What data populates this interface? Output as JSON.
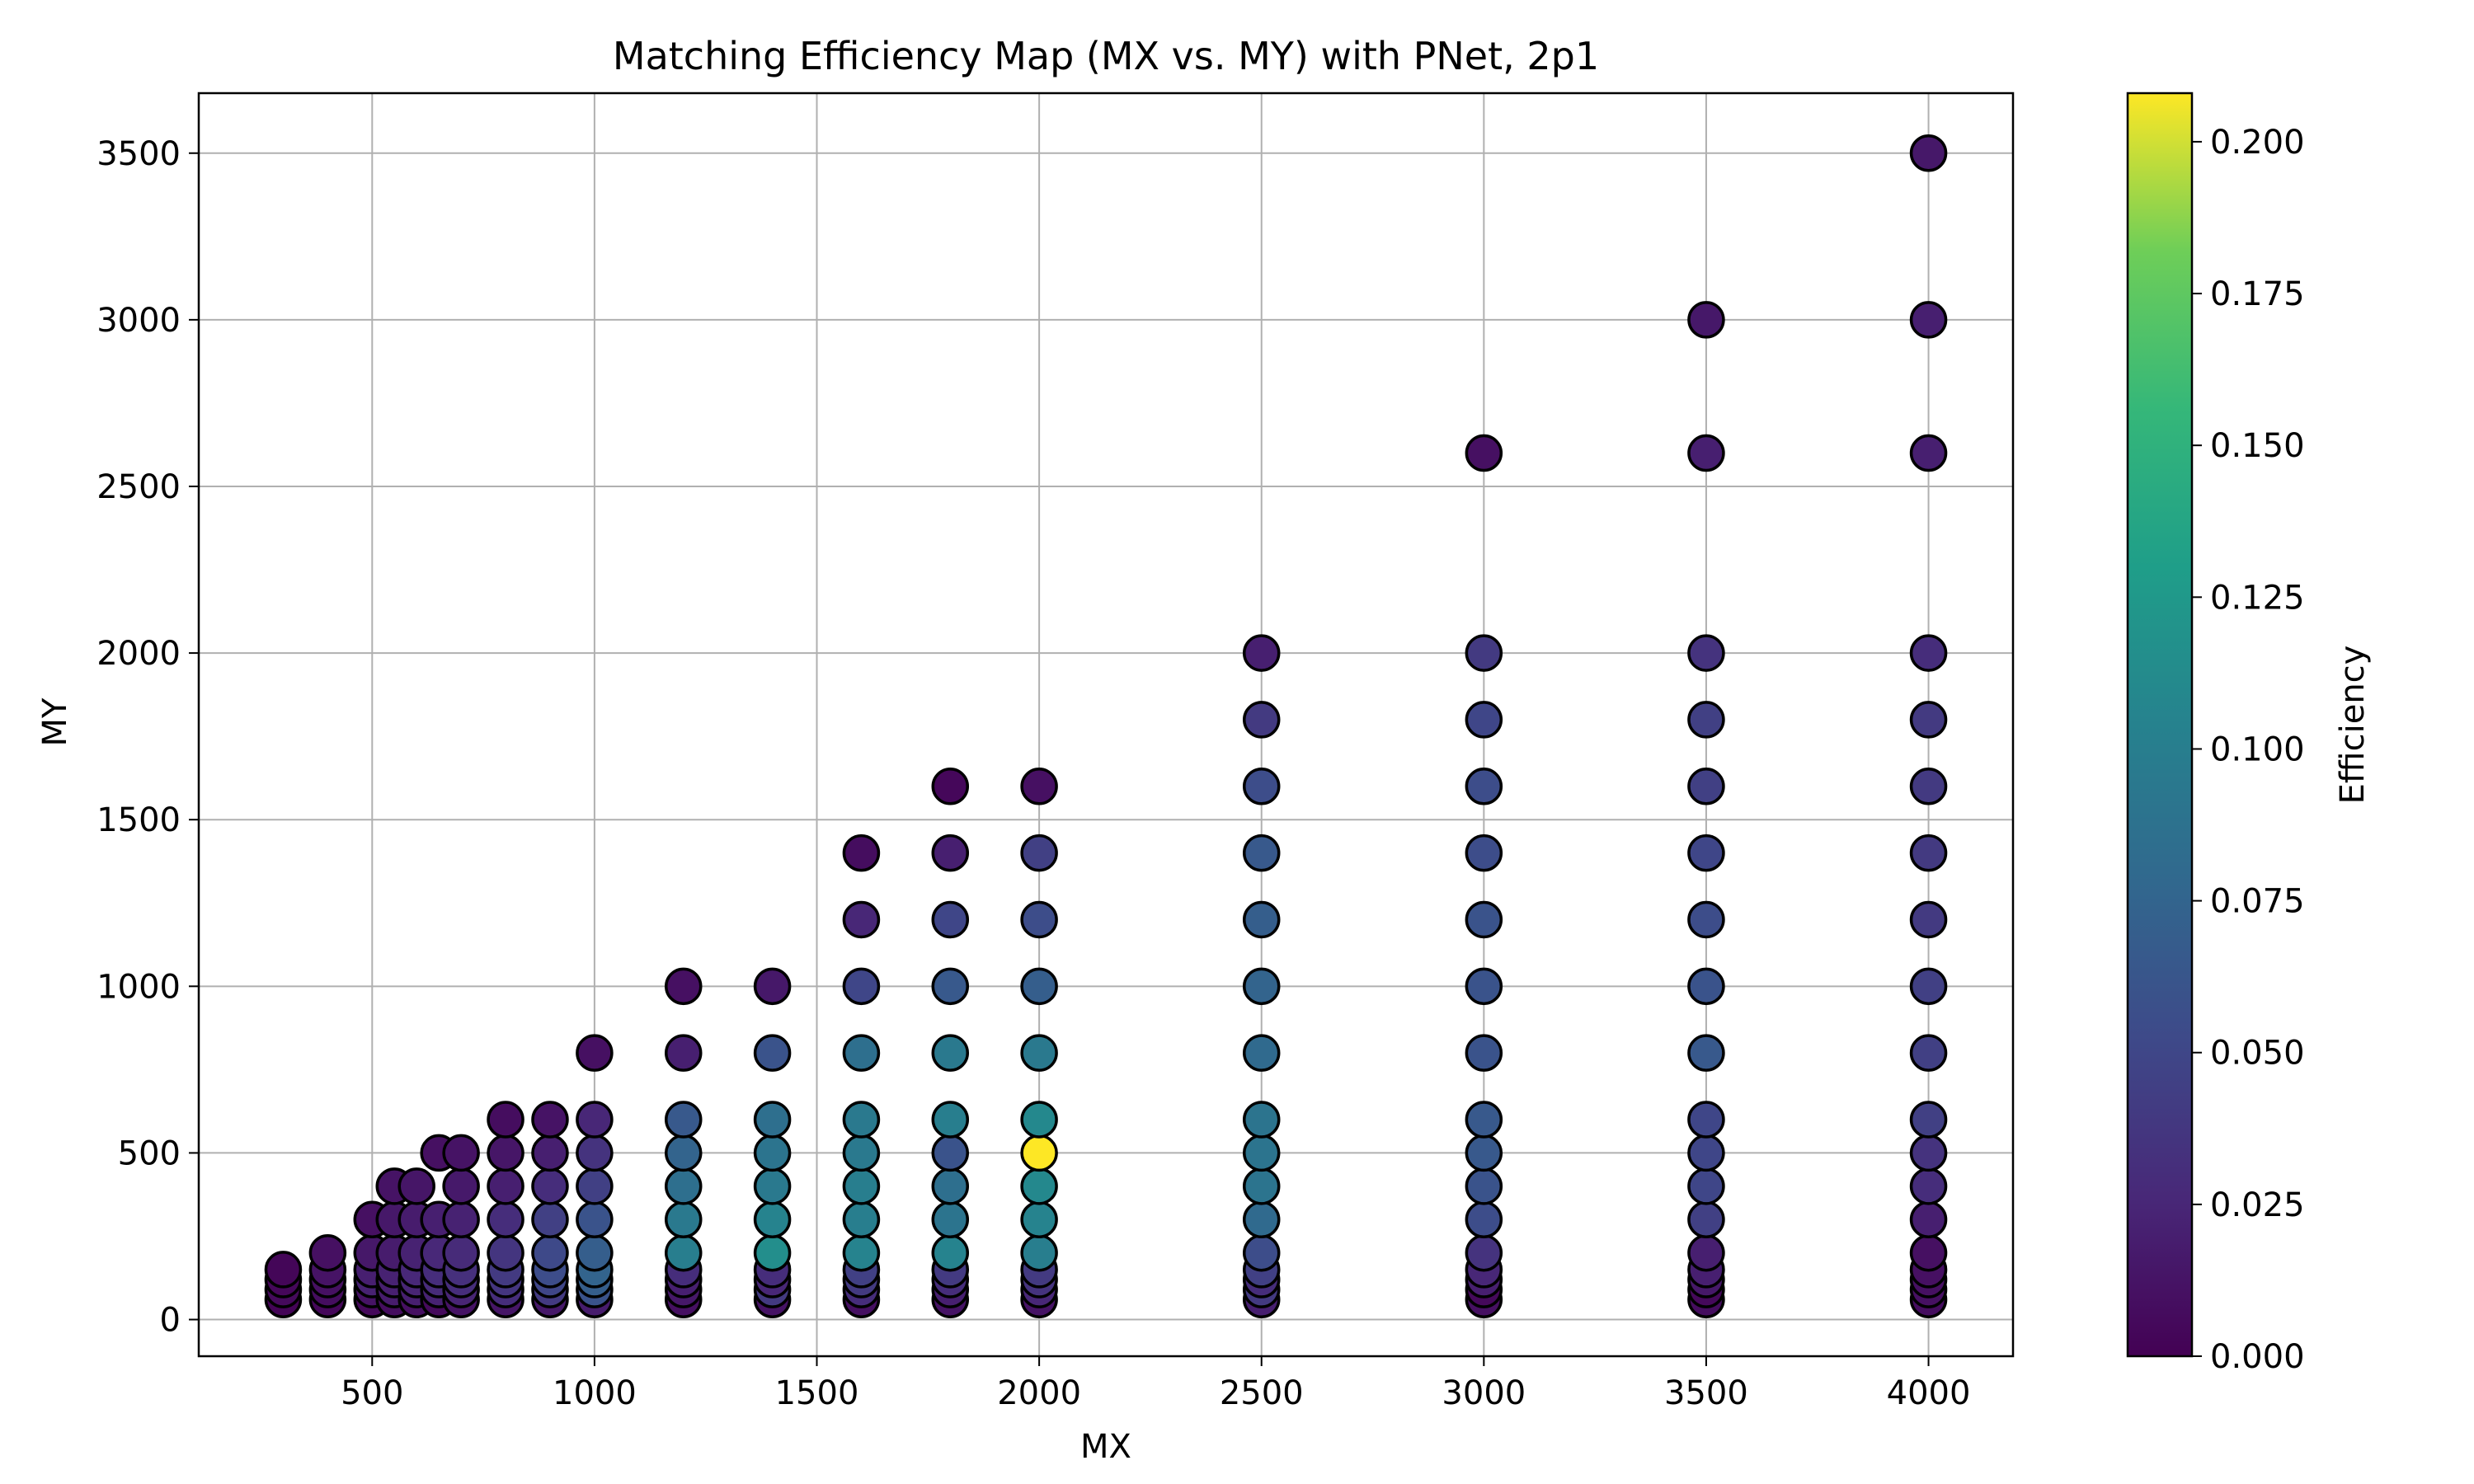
{
  "chart_data": {
    "type": "scatter",
    "title": "Matching Efficiency Map (MX vs. MY) with PNet, 2p1",
    "xlabel": "MX",
    "ylabel": "MY",
    "xlim": [
      110,
      4190
    ],
    "ylim": [
      -110,
      3680
    ],
    "x_ticks": [
      500,
      1000,
      1500,
      2000,
      2500,
      3000,
      3500,
      4000
    ],
    "y_ticks": [
      0,
      500,
      1000,
      1500,
      2000,
      2500,
      3000,
      3500
    ],
    "grid": true,
    "colormap": "viridis",
    "marker_edge_color": "#000000",
    "colorbar": {
      "label": "Efficiency",
      "range": [
        0.0,
        0.208
      ],
      "ticks": [
        "0.000",
        "0.025",
        "0.050",
        "0.075",
        "0.100",
        "0.125",
        "0.150",
        "0.175",
        "0.200"
      ]
    },
    "points": [
      {
        "mx": 300,
        "my": 60,
        "eff": 0.002
      },
      {
        "mx": 300,
        "my": 90,
        "eff": 0.006
      },
      {
        "mx": 300,
        "my": 120,
        "eff": 0.004
      },
      {
        "mx": 300,
        "my": 150,
        "eff": 0.003
      },
      {
        "mx": 400,
        "my": 60,
        "eff": 0.004
      },
      {
        "mx": 400,
        "my": 90,
        "eff": 0.008
      },
      {
        "mx": 400,
        "my": 120,
        "eff": 0.01
      },
      {
        "mx": 400,
        "my": 150,
        "eff": 0.012
      },
      {
        "mx": 400,
        "my": 200,
        "eff": 0.01
      },
      {
        "mx": 500,
        "my": 60,
        "eff": 0.005
      },
      {
        "mx": 500,
        "my": 90,
        "eff": 0.012
      },
      {
        "mx": 500,
        "my": 120,
        "eff": 0.022
      },
      {
        "mx": 500,
        "my": 150,
        "eff": 0.02
      },
      {
        "mx": 500,
        "my": 200,
        "eff": 0.015
      },
      {
        "mx": 500,
        "my": 300,
        "eff": 0.01
      },
      {
        "mx": 550,
        "my": 60,
        "eff": 0.008
      },
      {
        "mx": 550,
        "my": 90,
        "eff": 0.018
      },
      {
        "mx": 550,
        "my": 120,
        "eff": 0.02
      },
      {
        "mx": 550,
        "my": 150,
        "eff": 0.022
      },
      {
        "mx": 550,
        "my": 200,
        "eff": 0.018
      },
      {
        "mx": 550,
        "my": 300,
        "eff": 0.015
      },
      {
        "mx": 550,
        "my": 400,
        "eff": 0.012
      },
      {
        "mx": 600,
        "my": 60,
        "eff": 0.01
      },
      {
        "mx": 600,
        "my": 90,
        "eff": 0.02
      },
      {
        "mx": 600,
        "my": 120,
        "eff": 0.024
      },
      {
        "mx": 600,
        "my": 150,
        "eff": 0.026
      },
      {
        "mx": 600,
        "my": 200,
        "eff": 0.022
      },
      {
        "mx": 600,
        "my": 300,
        "eff": 0.018
      },
      {
        "mx": 600,
        "my": 400,
        "eff": 0.014
      },
      {
        "mx": 650,
        "my": 60,
        "eff": 0.006
      },
      {
        "mx": 650,
        "my": 90,
        "eff": 0.022
      },
      {
        "mx": 650,
        "my": 120,
        "eff": 0.028
      },
      {
        "mx": 650,
        "my": 150,
        "eff": 0.03
      },
      {
        "mx": 650,
        "my": 200,
        "eff": 0.026
      },
      {
        "mx": 650,
        "my": 300,
        "eff": 0.02
      },
      {
        "mx": 650,
        "my": 500,
        "eff": 0.01
      },
      {
        "mx": 700,
        "my": 60,
        "eff": 0.012
      },
      {
        "mx": 700,
        "my": 90,
        "eff": 0.024
      },
      {
        "mx": 700,
        "my": 120,
        "eff": 0.03
      },
      {
        "mx": 700,
        "my": 150,
        "eff": 0.032
      },
      {
        "mx": 700,
        "my": 200,
        "eff": 0.028
      },
      {
        "mx": 700,
        "my": 300,
        "eff": 0.022
      },
      {
        "mx": 700,
        "my": 400,
        "eff": 0.016
      },
      {
        "mx": 700,
        "my": 500,
        "eff": 0.012
      },
      {
        "mx": 800,
        "my": 60,
        "eff": 0.014
      },
      {
        "mx": 800,
        "my": 90,
        "eff": 0.03
      },
      {
        "mx": 800,
        "my": 120,
        "eff": 0.036
      },
      {
        "mx": 800,
        "my": 150,
        "eff": 0.04
      },
      {
        "mx": 800,
        "my": 200,
        "eff": 0.036
      },
      {
        "mx": 800,
        "my": 300,
        "eff": 0.03
      },
      {
        "mx": 800,
        "my": 400,
        "eff": 0.02
      },
      {
        "mx": 800,
        "my": 500,
        "eff": 0.014
      },
      {
        "mx": 800,
        "my": 600,
        "eff": 0.008
      },
      {
        "mx": 900,
        "my": 60,
        "eff": 0.015
      },
      {
        "mx": 900,
        "my": 90,
        "eff": 0.04
      },
      {
        "mx": 900,
        "my": 120,
        "eff": 0.05
      },
      {
        "mx": 900,
        "my": 150,
        "eff": 0.055
      },
      {
        "mx": 900,
        "my": 200,
        "eff": 0.052
      },
      {
        "mx": 900,
        "my": 300,
        "eff": 0.045
      },
      {
        "mx": 900,
        "my": 400,
        "eff": 0.03
      },
      {
        "mx": 900,
        "my": 500,
        "eff": 0.02
      },
      {
        "mx": 900,
        "my": 600,
        "eff": 0.012
      },
      {
        "mx": 1000,
        "my": 60,
        "eff": 0.018
      },
      {
        "mx": 1000,
        "my": 90,
        "eff": 0.06
      },
      {
        "mx": 1000,
        "my": 120,
        "eff": 0.07
      },
      {
        "mx": 1000,
        "my": 150,
        "eff": 0.075
      },
      {
        "mx": 1000,
        "my": 200,
        "eff": 0.07
      },
      {
        "mx": 1000,
        "my": 300,
        "eff": 0.06
      },
      {
        "mx": 1000,
        "my": 400,
        "eff": 0.045
      },
      {
        "mx": 1000,
        "my": 500,
        "eff": 0.035
      },
      {
        "mx": 1000,
        "my": 600,
        "eff": 0.025
      },
      {
        "mx": 1000,
        "my": 800,
        "eff": 0.01
      },
      {
        "mx": 1200,
        "my": 60,
        "eff": 0.01
      },
      {
        "mx": 1200,
        "my": 90,
        "eff": 0.015
      },
      {
        "mx": 1200,
        "my": 120,
        "eff": 0.02
      },
      {
        "mx": 1200,
        "my": 150,
        "eff": 0.03
      },
      {
        "mx": 1200,
        "my": 200,
        "eff": 0.1
      },
      {
        "mx": 1200,
        "my": 300,
        "eff": 0.095
      },
      {
        "mx": 1200,
        "my": 400,
        "eff": 0.085
      },
      {
        "mx": 1200,
        "my": 500,
        "eff": 0.075
      },
      {
        "mx": 1200,
        "my": 600,
        "eff": 0.065
      },
      {
        "mx": 1200,
        "my": 800,
        "eff": 0.02
      },
      {
        "mx": 1200,
        "my": 1000,
        "eff": 0.01
      },
      {
        "mx": 1400,
        "my": 60,
        "eff": 0.012
      },
      {
        "mx": 1400,
        "my": 90,
        "eff": 0.04
      },
      {
        "mx": 1400,
        "my": 120,
        "eff": 0.025
      },
      {
        "mx": 1400,
        "my": 150,
        "eff": 0.03
      },
      {
        "mx": 1400,
        "my": 200,
        "eff": 0.115
      },
      {
        "mx": 1400,
        "my": 300,
        "eff": 0.105
      },
      {
        "mx": 1400,
        "my": 400,
        "eff": 0.095
      },
      {
        "mx": 1400,
        "my": 500,
        "eff": 0.09
      },
      {
        "mx": 1400,
        "my": 600,
        "eff": 0.085
      },
      {
        "mx": 1400,
        "my": 800,
        "eff": 0.06
      },
      {
        "mx": 1400,
        "my": 1000,
        "eff": 0.015
      },
      {
        "mx": 1600,
        "my": 60,
        "eff": 0.01
      },
      {
        "mx": 1600,
        "my": 90,
        "eff": 0.03
      },
      {
        "mx": 1600,
        "my": 120,
        "eff": 0.04
      },
      {
        "mx": 1600,
        "my": 150,
        "eff": 0.045
      },
      {
        "mx": 1600,
        "my": 200,
        "eff": 0.105
      },
      {
        "mx": 1600,
        "my": 300,
        "eff": 0.1
      },
      {
        "mx": 1600,
        "my": 400,
        "eff": 0.1
      },
      {
        "mx": 1600,
        "my": 500,
        "eff": 0.095
      },
      {
        "mx": 1600,
        "my": 600,
        "eff": 0.095
      },
      {
        "mx": 1600,
        "my": 800,
        "eff": 0.085
      },
      {
        "mx": 1600,
        "my": 1000,
        "eff": 0.05
      },
      {
        "mx": 1600,
        "my": 1200,
        "eff": 0.025
      },
      {
        "mx": 1600,
        "my": 1400,
        "eff": 0.008
      },
      {
        "mx": 1800,
        "my": 60,
        "eff": 0.012
      },
      {
        "mx": 1800,
        "my": 90,
        "eff": 0.02
      },
      {
        "mx": 1800,
        "my": 120,
        "eff": 0.03
      },
      {
        "mx": 1800,
        "my": 150,
        "eff": 0.04
      },
      {
        "mx": 1800,
        "my": 200,
        "eff": 0.105
      },
      {
        "mx": 1800,
        "my": 300,
        "eff": 0.09
      },
      {
        "mx": 1800,
        "my": 400,
        "eff": 0.085
      },
      {
        "mx": 1800,
        "my": 500,
        "eff": 0.06
      },
      {
        "mx": 1800,
        "my": 600,
        "eff": 0.1
      },
      {
        "mx": 1800,
        "my": 800,
        "eff": 0.095
      },
      {
        "mx": 1800,
        "my": 1000,
        "eff": 0.065
      },
      {
        "mx": 1800,
        "my": 1200,
        "eff": 0.05
      },
      {
        "mx": 1800,
        "my": 1400,
        "eff": 0.02
      },
      {
        "mx": 1800,
        "my": 1600,
        "eff": 0.004
      },
      {
        "mx": 2000,
        "my": 60,
        "eff": 0.012
      },
      {
        "mx": 2000,
        "my": 90,
        "eff": 0.025
      },
      {
        "mx": 2000,
        "my": 120,
        "eff": 0.035
      },
      {
        "mx": 2000,
        "my": 150,
        "eff": 0.04
      },
      {
        "mx": 2000,
        "my": 200,
        "eff": 0.1
      },
      {
        "mx": 2000,
        "my": 300,
        "eff": 0.105
      },
      {
        "mx": 2000,
        "my": 400,
        "eff": 0.11
      },
      {
        "mx": 2000,
        "my": 500,
        "eff": 0.208
      },
      {
        "mx": 2000,
        "my": 600,
        "eff": 0.11
      },
      {
        "mx": 2000,
        "my": 800,
        "eff": 0.095
      },
      {
        "mx": 2000,
        "my": 1000,
        "eff": 0.07
      },
      {
        "mx": 2000,
        "my": 1200,
        "eff": 0.055
      },
      {
        "mx": 2000,
        "my": 1400,
        "eff": 0.045
      },
      {
        "mx": 2000,
        "my": 1600,
        "eff": 0.01
      },
      {
        "mx": 2500,
        "my": 60,
        "eff": 0.02
      },
      {
        "mx": 2500,
        "my": 90,
        "eff": 0.04
      },
      {
        "mx": 2500,
        "my": 120,
        "eff": 0.03
      },
      {
        "mx": 2500,
        "my": 150,
        "eff": 0.045
      },
      {
        "mx": 2500,
        "my": 200,
        "eff": 0.055
      },
      {
        "mx": 2500,
        "my": 300,
        "eff": 0.08
      },
      {
        "mx": 2500,
        "my": 400,
        "eff": 0.09
      },
      {
        "mx": 2500,
        "my": 500,
        "eff": 0.09
      },
      {
        "mx": 2500,
        "my": 600,
        "eff": 0.09
      },
      {
        "mx": 2500,
        "my": 800,
        "eff": 0.08
      },
      {
        "mx": 2500,
        "my": 1000,
        "eff": 0.075
      },
      {
        "mx": 2500,
        "my": 1200,
        "eff": 0.07
      },
      {
        "mx": 2500,
        "my": 1400,
        "eff": 0.065
      },
      {
        "mx": 2500,
        "my": 1600,
        "eff": 0.055
      },
      {
        "mx": 2500,
        "my": 1800,
        "eff": 0.04
      },
      {
        "mx": 2500,
        "my": 2000,
        "eff": 0.02
      },
      {
        "mx": 3000,
        "my": 60,
        "eff": 0.01
      },
      {
        "mx": 3000,
        "my": 90,
        "eff": 0.005
      },
      {
        "mx": 3000,
        "my": 120,
        "eff": 0.02
      },
      {
        "mx": 3000,
        "my": 150,
        "eff": 0.025
      },
      {
        "mx": 3000,
        "my": 200,
        "eff": 0.035
      },
      {
        "mx": 3000,
        "my": 300,
        "eff": 0.055
      },
      {
        "mx": 3000,
        "my": 400,
        "eff": 0.06
      },
      {
        "mx": 3000,
        "my": 500,
        "eff": 0.065
      },
      {
        "mx": 3000,
        "my": 600,
        "eff": 0.065
      },
      {
        "mx": 3000,
        "my": 800,
        "eff": 0.06
      },
      {
        "mx": 3000,
        "my": 1000,
        "eff": 0.06
      },
      {
        "mx": 3000,
        "my": 1200,
        "eff": 0.06
      },
      {
        "mx": 3000,
        "my": 1400,
        "eff": 0.055
      },
      {
        "mx": 3000,
        "my": 1600,
        "eff": 0.055
      },
      {
        "mx": 3000,
        "my": 1800,
        "eff": 0.05
      },
      {
        "mx": 3000,
        "my": 2000,
        "eff": 0.04
      },
      {
        "mx": 3000,
        "my": 2600,
        "eff": 0.01
      },
      {
        "mx": 3500,
        "my": 60,
        "eff": 0.008
      },
      {
        "mx": 3500,
        "my": 90,
        "eff": 0.005
      },
      {
        "mx": 3500,
        "my": 120,
        "eff": 0.015
      },
      {
        "mx": 3500,
        "my": 150,
        "eff": 0.02
      },
      {
        "mx": 3500,
        "my": 200,
        "eff": 0.02
      },
      {
        "mx": 3500,
        "my": 300,
        "eff": 0.045
      },
      {
        "mx": 3500,
        "my": 400,
        "eff": 0.05
      },
      {
        "mx": 3500,
        "my": 500,
        "eff": 0.05
      },
      {
        "mx": 3500,
        "my": 600,
        "eff": 0.05
      },
      {
        "mx": 3500,
        "my": 800,
        "eff": 0.065
      },
      {
        "mx": 3500,
        "my": 1000,
        "eff": 0.06
      },
      {
        "mx": 3500,
        "my": 1200,
        "eff": 0.055
      },
      {
        "mx": 3500,
        "my": 1400,
        "eff": 0.05
      },
      {
        "mx": 3500,
        "my": 1600,
        "eff": 0.045
      },
      {
        "mx": 3500,
        "my": 1800,
        "eff": 0.045
      },
      {
        "mx": 3500,
        "my": 2000,
        "eff": 0.035
      },
      {
        "mx": 3500,
        "my": 2600,
        "eff": 0.02
      },
      {
        "mx": 3500,
        "my": 3000,
        "eff": 0.015
      },
      {
        "mx": 4000,
        "my": 60,
        "eff": 0.008
      },
      {
        "mx": 4000,
        "my": 90,
        "eff": 0.01
      },
      {
        "mx": 4000,
        "my": 120,
        "eff": 0.01
      },
      {
        "mx": 4000,
        "my": 150,
        "eff": 0.01
      },
      {
        "mx": 4000,
        "my": 200,
        "eff": 0.01
      },
      {
        "mx": 4000,
        "my": 300,
        "eff": 0.02
      },
      {
        "mx": 4000,
        "my": 400,
        "eff": 0.03
      },
      {
        "mx": 4000,
        "my": 500,
        "eff": 0.035
      },
      {
        "mx": 4000,
        "my": 600,
        "eff": 0.045
      },
      {
        "mx": 4000,
        "my": 800,
        "eff": 0.045
      },
      {
        "mx": 4000,
        "my": 1000,
        "eff": 0.045
      },
      {
        "mx": 4000,
        "my": 1200,
        "eff": 0.04
      },
      {
        "mx": 4000,
        "my": 1400,
        "eff": 0.04
      },
      {
        "mx": 4000,
        "my": 1600,
        "eff": 0.04
      },
      {
        "mx": 4000,
        "my": 1800,
        "eff": 0.04
      },
      {
        "mx": 4000,
        "my": 2000,
        "eff": 0.03
      },
      {
        "mx": 4000,
        "my": 2600,
        "eff": 0.02
      },
      {
        "mx": 4000,
        "my": 3000,
        "eff": 0.02
      },
      {
        "mx": 4000,
        "my": 3500,
        "eff": 0.015
      }
    ]
  }
}
